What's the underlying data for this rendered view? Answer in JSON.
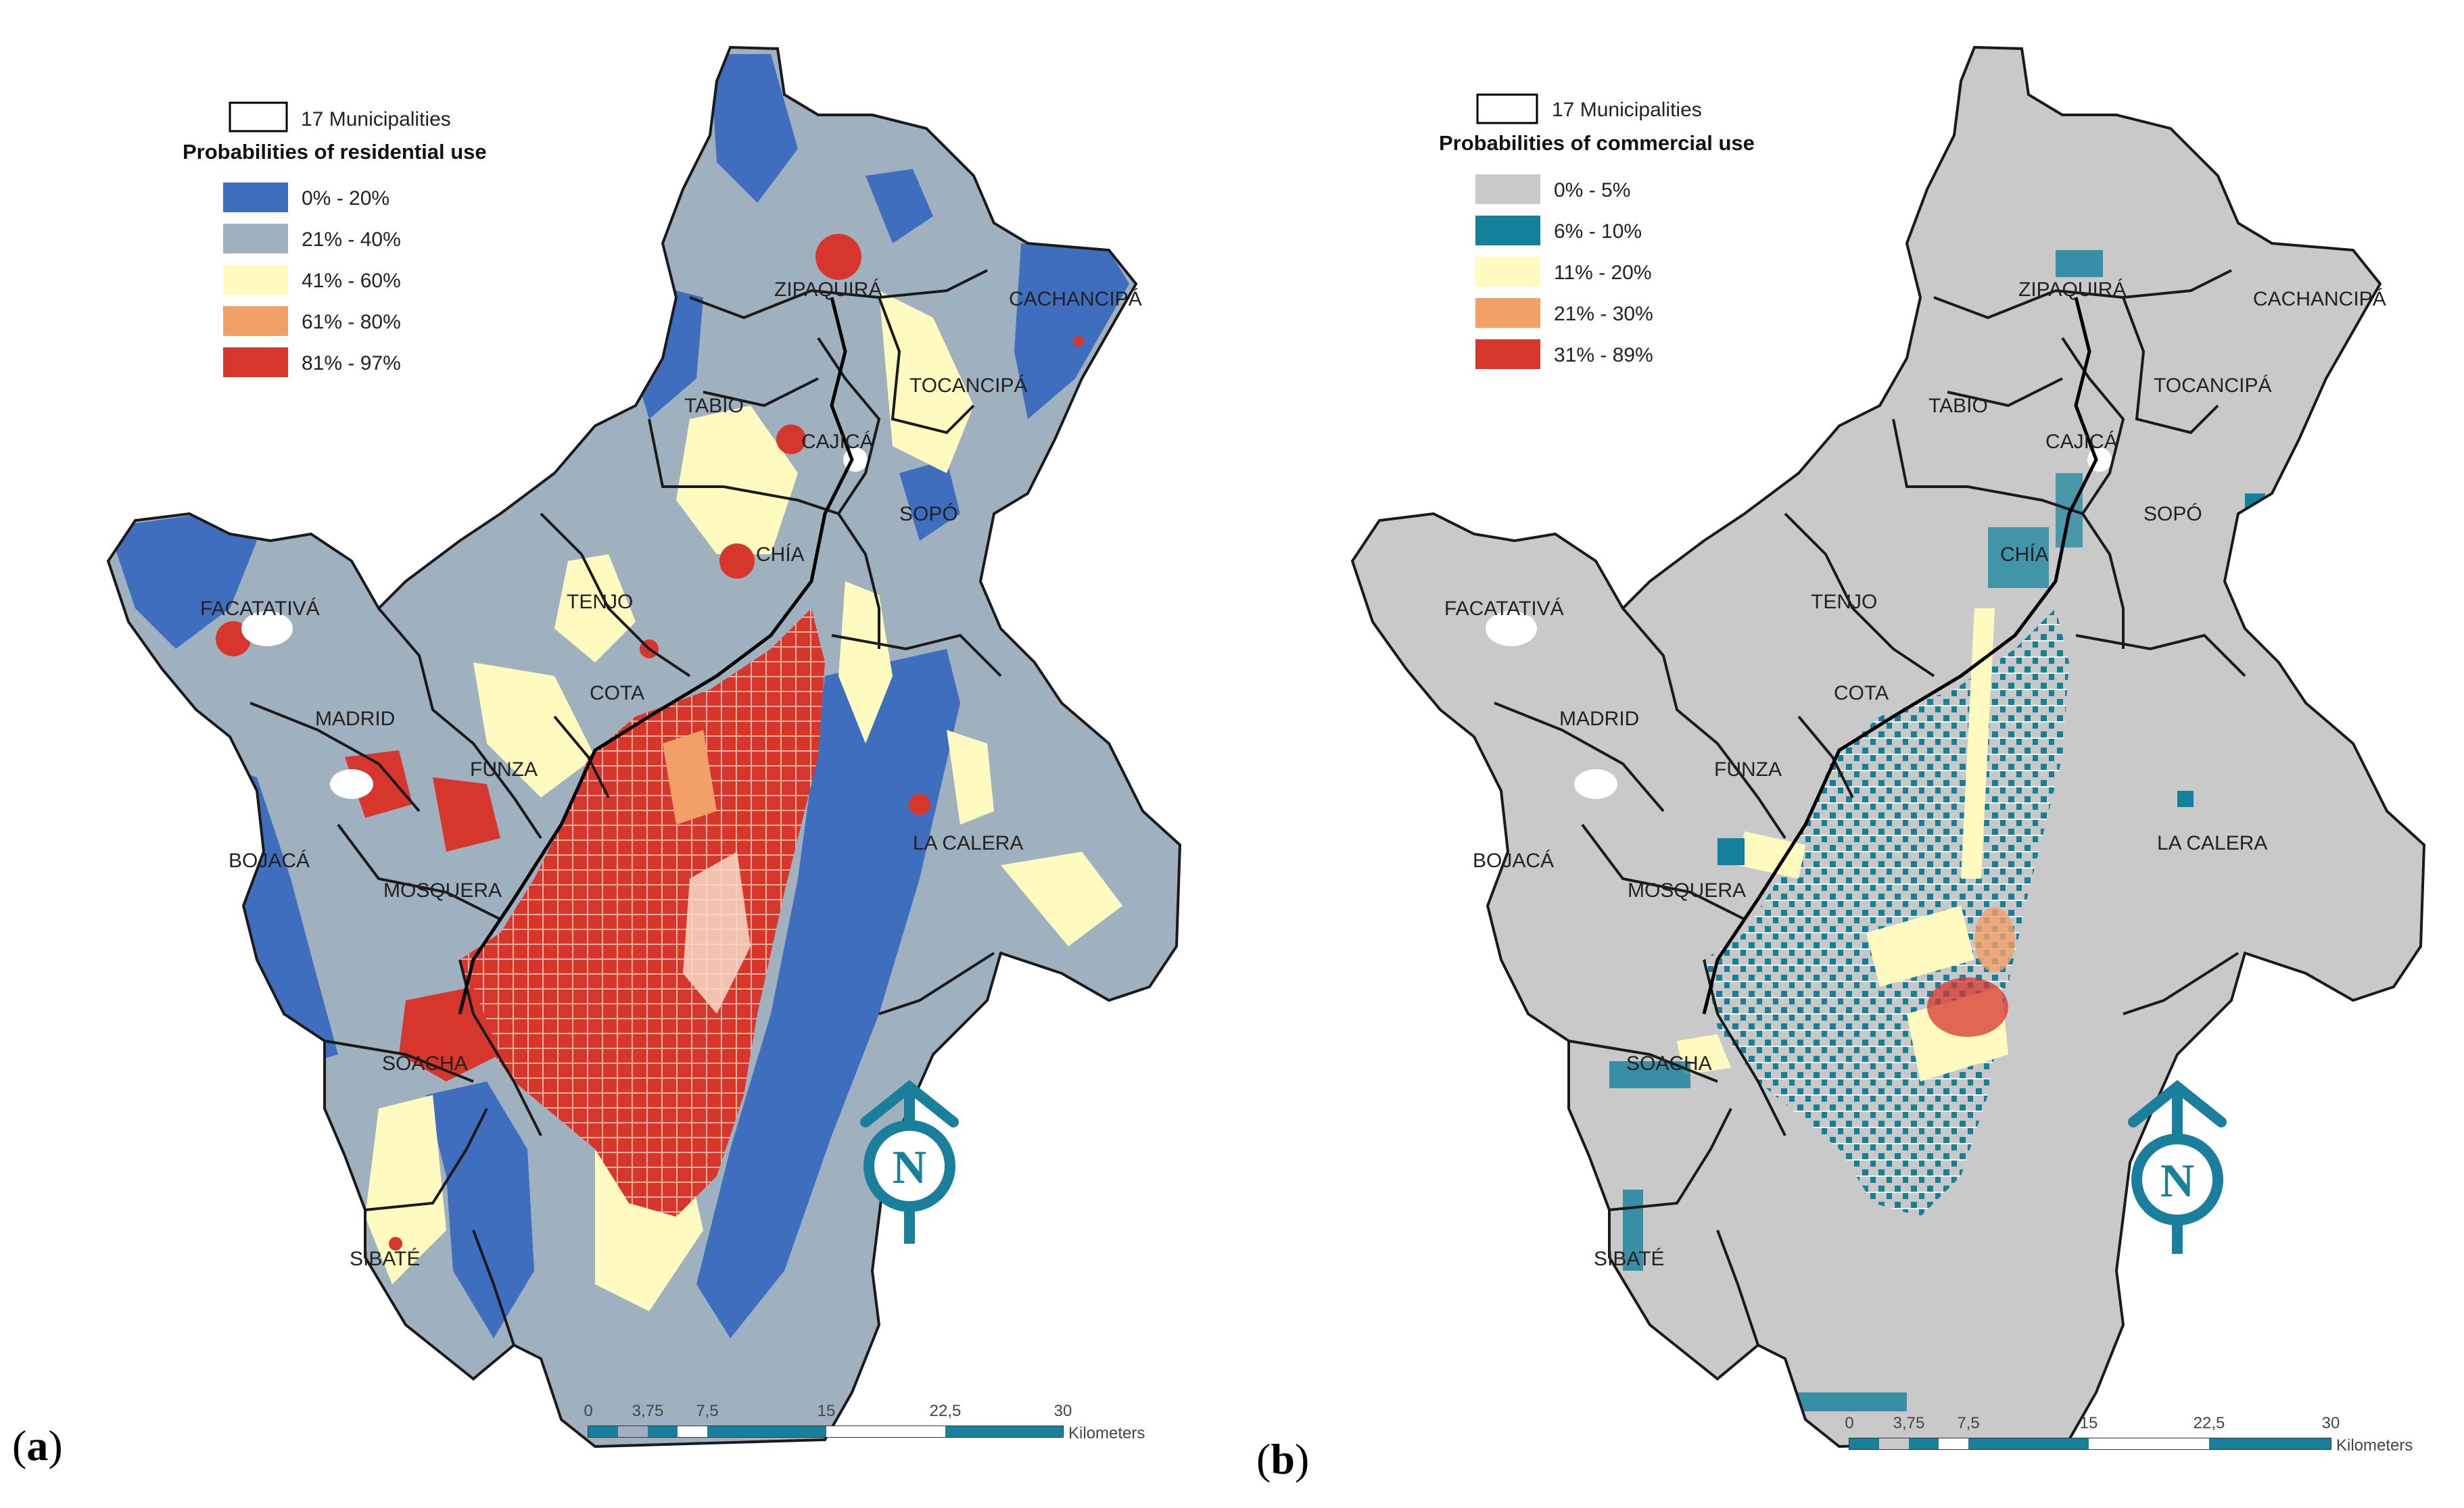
{
  "panel_a": {
    "label_open": "(",
    "label_letter": "a",
    "label_close": ")",
    "legend": {
      "boundary_label": "17 Municipalities",
      "title": "Probabilities of residential use",
      "classes": [
        {
          "label": "0% - 20%",
          "color": "#3e6ebd"
        },
        {
          "label": "21% - 40%",
          "color": "#9fb0be"
        },
        {
          "label": "41% - 60%",
          "color": "#fffbc0"
        },
        {
          "label": "61% - 80%",
          "color": "#f2a068"
        },
        {
          "label": "81% - 97%",
          "color": "#d7362d"
        }
      ]
    },
    "municipalities": [
      "ZIPAQUIRÁ",
      "CACHANCIPÁ",
      "TOCANCIPÁ",
      "TABIO",
      "CAJICÁ",
      "SOPÓ",
      "CHÍA",
      "FACATATIVÁ",
      "TENJO",
      "COTA",
      "MADRID",
      "FUNZA",
      "LA CALERA",
      "BOJACÁ",
      "MOSQUERA",
      "SOACHA",
      "SIBATÉ"
    ]
  },
  "panel_b": {
    "label_open": "(",
    "label_letter": "b",
    "label_close": ")",
    "legend": {
      "boundary_label": "17 Municipalities",
      "title": "Probabilities of commercial use",
      "classes": [
        {
          "label": "0% - 5%",
          "color": "#c9c9c9"
        },
        {
          "label": "6% - 10%",
          "color": "#14819c"
        },
        {
          "label": "11% - 20%",
          "color": "#fffbc0"
        },
        {
          "label": "21% - 30%",
          "color": "#f2a068"
        },
        {
          "label": "31% - 89%",
          "color": "#d7362d"
        }
      ]
    },
    "municipalities": [
      "ZIPAQUIRÁ",
      "CACHANCIPÁ",
      "TOCANCIPÁ",
      "TABIO",
      "CAJICÁ",
      "SOPÓ",
      "CHÍA",
      "FACATATIVÁ",
      "TENJO",
      "COTA",
      "MADRID",
      "FUNZA",
      "LA CALERA",
      "BOJACÁ",
      "MOSQUERA",
      "SOACHA",
      "SIBATÉ"
    ]
  },
  "scale_bar": {
    "ticks": [
      "0",
      "3,75",
      "7,5",
      "15",
      "22,5",
      "30"
    ],
    "unit": "Kilometers"
  },
  "north_arrow": {
    "letter": "N",
    "color": "#1a7f9c"
  }
}
